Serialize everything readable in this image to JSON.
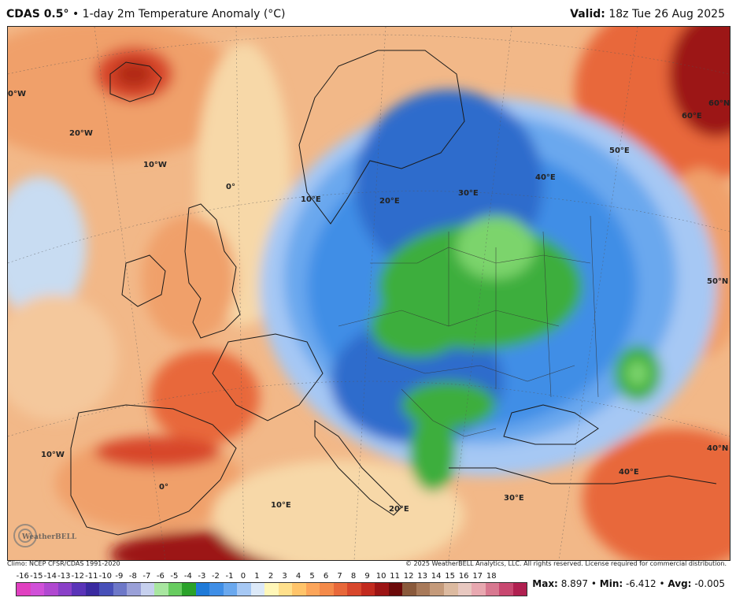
{
  "header": {
    "model": "CDAS 0.5°",
    "separator": " • ",
    "product": "1-day 2m Temperature Anomaly (°C)",
    "valid_label": "Valid:",
    "valid_time": "18z Tue 26 Aug 2025"
  },
  "map": {
    "region": "Europe",
    "longitude_labels": [
      "0°W",
      "20°W",
      "10°W",
      "0°",
      "10°E",
      "20°E",
      "30°E",
      "40°E",
      "50°E",
      "60°E",
      "60°N",
      "50°N",
      "40°N",
      "40°E",
      "30°E",
      "20°E",
      "10°E",
      "10°W",
      "0°"
    ],
    "colors": {
      "warm_light": "#f7d8a8",
      "warm": "#f0a06a",
      "warm_strong": "#e3683c",
      "warm_dark": "#b22a16",
      "cool_light": "#c8dcf2",
      "cool": "#6ea6e0",
      "cool_strong": "#2f6ccc",
      "cold_green": "#3cae3c",
      "cold_green_light": "#7cd46c"
    }
  },
  "footer": {
    "climo": "Climo: NCEP CFSR/CDAS 1991-2020",
    "copyright": "© 2025 WeatherBELL Analytics, LLC. All rights reserved. License required for commercial distribution."
  },
  "legend": {
    "ticks": [
      "-16",
      "-15",
      "-14",
      "-13",
      "-12",
      "-11",
      "-10",
      "-9",
      "-8",
      "-7",
      "-6",
      "-5",
      "-4",
      "-3",
      "-2",
      "-1",
      "0",
      "1",
      "2",
      "3",
      "4",
      "5",
      "6",
      "7",
      "8",
      "9",
      "10",
      "11",
      "12",
      "13",
      "14",
      "15",
      "16",
      "17",
      "18"
    ],
    "colors": [
      "#e040c0",
      "#d050d8",
      "#b048d0",
      "#8a40c8",
      "#5a34b8",
      "#3a2aa0",
      "#4850b8",
      "#6e78c8",
      "#9aa0d8",
      "#c6d0ee",
      "#a8e6a0",
      "#68cc60",
      "#2aa22a",
      "#1f7ad8",
      "#3f8ee6",
      "#6aa8ee",
      "#a6c8f4",
      "#dce9f8",
      "#fff7b8",
      "#ffe08c",
      "#ffc46a",
      "#fca55a",
      "#f48a4a",
      "#e8683a",
      "#d8472c",
      "#c22a1e",
      "#9c1414",
      "#6c0a0a",
      "#8a5a3c",
      "#a87a5a",
      "#c49a7a",
      "#dcbaa0",
      "#e8c8c0",
      "#e8a8b0",
      "#d87890",
      "#c84870",
      "#b02050"
    ]
  },
  "stats": {
    "max_label": "Max:",
    "max_value": "8.897",
    "min_label": "Min:",
    "min_value": "-6.412",
    "avg_label": "Avg:",
    "avg_value": "-0.005",
    "sep": " • "
  },
  "logo": {
    "text": "WeatherBELL"
  }
}
